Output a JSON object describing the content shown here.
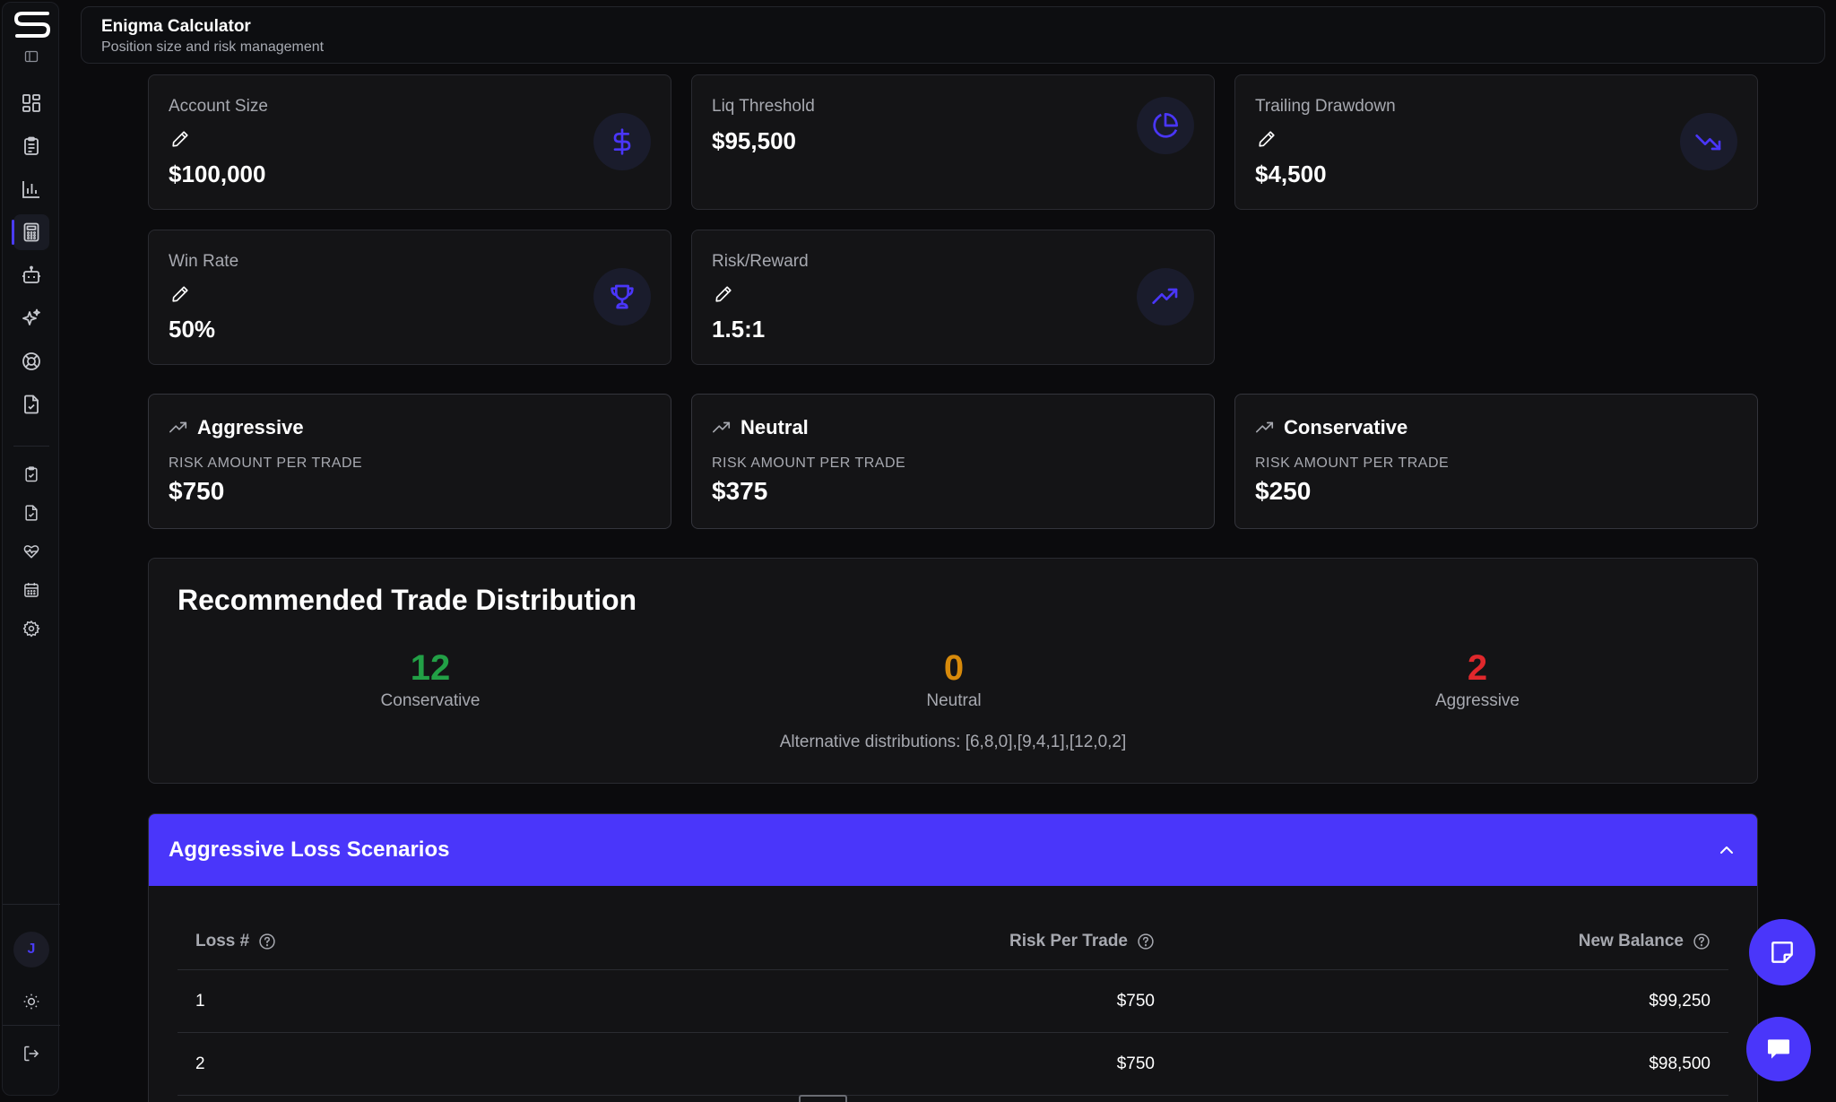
{
  "header": {
    "title": "Enigma Calculator",
    "subtitle": "Position size and risk management"
  },
  "sidebar": {
    "items": [
      {
        "icon": "dashboard-icon"
      },
      {
        "icon": "clipboard-icon"
      },
      {
        "icon": "bar-chart-icon"
      },
      {
        "icon": "calculator-icon",
        "active": true
      },
      {
        "icon": "robot-icon"
      },
      {
        "icon": "sparkles-icon"
      },
      {
        "icon": "lifebuoy-icon"
      },
      {
        "icon": "document-check-icon"
      },
      {
        "icon": "clipboard-check-icon"
      },
      {
        "icon": "file-check-icon"
      },
      {
        "icon": "heart-pulse-icon"
      },
      {
        "icon": "calendar-icon"
      },
      {
        "icon": "gear-icon"
      }
    ],
    "avatar_initial": "J"
  },
  "stats": {
    "account_size": {
      "label": "Account Size",
      "value": "$100,000"
    },
    "liq_threshold": {
      "label": "Liq Threshold",
      "value": "$95,500"
    },
    "trailing_drawdown": {
      "label": "Trailing Drawdown",
      "value": "$4,500"
    },
    "win_rate": {
      "label": "Win Rate",
      "value": "50%"
    },
    "risk_reward": {
      "label": "Risk/Reward",
      "value": "1.5:1"
    }
  },
  "profiles": {
    "aggressive": {
      "name": "Aggressive",
      "label": "RISK AMOUNT PER TRADE",
      "value": "$750"
    },
    "neutral": {
      "name": "Neutral",
      "label": "RISK AMOUNT PER TRADE",
      "value": "$375"
    },
    "conservative": {
      "name": "Conservative",
      "label": "RISK AMOUNT PER TRADE",
      "value": "$250"
    }
  },
  "distribution": {
    "title": "Recommended Trade Distribution",
    "conservative": {
      "count": "12",
      "label": "Conservative"
    },
    "neutral": {
      "count": "0",
      "label": "Neutral"
    },
    "aggressive": {
      "count": "2",
      "label": "Aggressive"
    },
    "alternatives": "Alternative distributions: [6,8,0],[9,4,1],[12,0,2]"
  },
  "scenarios": {
    "title": "Aggressive Loss Scenarios",
    "columns": [
      "Loss #",
      "Risk Per Trade",
      "New Balance"
    ],
    "rows": [
      [
        "1",
        "$750",
        "$99,250"
      ],
      [
        "2",
        "$750",
        "$98,500"
      ]
    ]
  },
  "colors": {
    "accent": "#4a36fa",
    "conservative": "#22a046",
    "neutral": "#d78a0b",
    "aggressive": "#e0282c"
  }
}
